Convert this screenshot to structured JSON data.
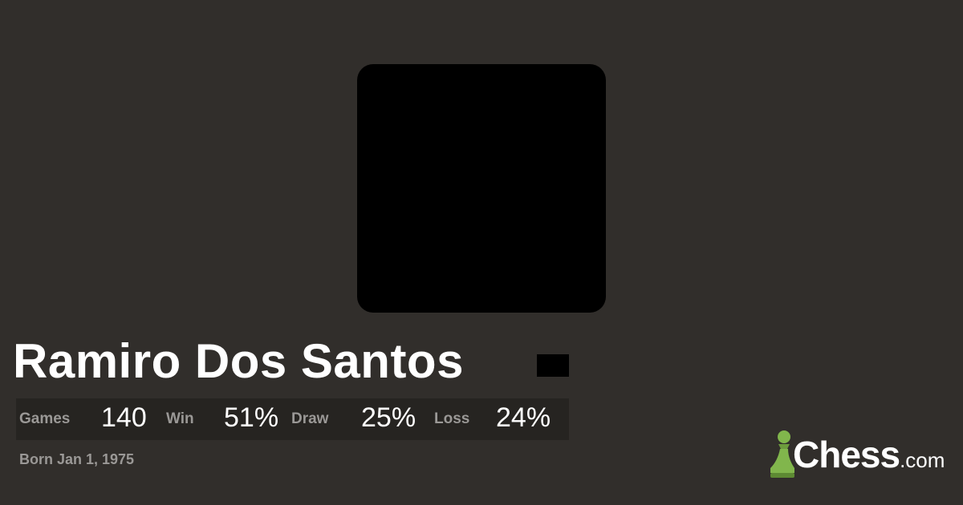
{
  "profile": {
    "name": "Ramiro Dos Santos",
    "born": "Born Jan 1, 1975"
  },
  "stats": [
    {
      "label": "Games",
      "value": "140"
    },
    {
      "label": "Win",
      "value": "51%"
    },
    {
      "label": "Draw",
      "value": "25%"
    },
    {
      "label": "Loss",
      "value": "24%"
    }
  ],
  "brand": {
    "name": "Chess",
    "suffix": ".com",
    "accent": "#81b64c"
  }
}
